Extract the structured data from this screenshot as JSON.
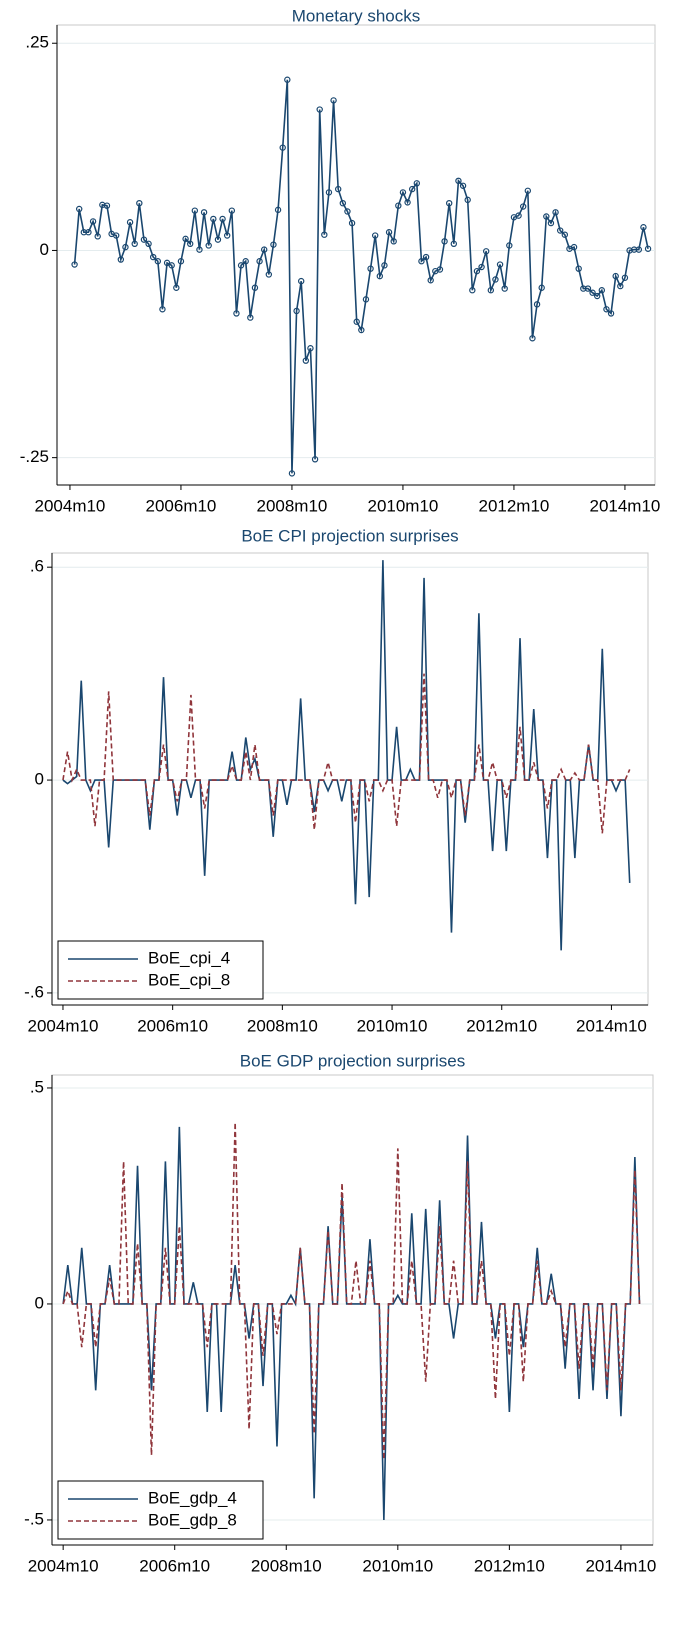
{
  "chart_data": [
    {
      "type": "line",
      "title": "Monetary shocks",
      "marker": "circle",
      "grid": true,
      "x": [
        538,
        539,
        540,
        541,
        542,
        543,
        544,
        545,
        546,
        547,
        548,
        549,
        550,
        551,
        552,
        553,
        554,
        555,
        556,
        557,
        558,
        559,
        560,
        561,
        562,
        563,
        564,
        565,
        566,
        567,
        568,
        569,
        570,
        571,
        572,
        573,
        574,
        575,
        576,
        577,
        578,
        579,
        580,
        581,
        582,
        583,
        584,
        585,
        586,
        587,
        588,
        589,
        590,
        591,
        592,
        593,
        594,
        595,
        596,
        597,
        598,
        599,
        600,
        601,
        602,
        603,
        604,
        605,
        606,
        607,
        608,
        609,
        610,
        611,
        612,
        613,
        614,
        615,
        616,
        617,
        618,
        619,
        620,
        621,
        622,
        623,
        624,
        625,
        626,
        627,
        628,
        629,
        630,
        631,
        632,
        633,
        634,
        635,
        636,
        637,
        638,
        639,
        640,
        641,
        642,
        643,
        644,
        645,
        646,
        647,
        648,
        649,
        650,
        651,
        652,
        653,
        654,
        655,
        656,
        657,
        658,
        659,
        660,
        661,
        662
      ],
      "series": [
        {
          "color": "#1a476f",
          "values": [
            -0.017,
            0.05,
            0.022,
            0.022,
            0.035,
            0.017,
            0.055,
            0.054,
            0.02,
            0.018,
            -0.011,
            0.004,
            0.034,
            0.008,
            0.057,
            0.013,
            0.008,
            -0.008,
            -0.013,
            -0.071,
            -0.015,
            -0.018,
            -0.045,
            -0.013,
            0.014,
            0.008,
            0.048,
            0.001,
            0.046,
            0.006,
            0.038,
            0.013,
            0.038,
            0.018,
            0.048,
            -0.076,
            -0.018,
            -0.013,
            -0.081,
            -0.045,
            -0.013,
            0.001,
            -0.029,
            0.007,
            0.049,
            0.124,
            0.206,
            -0.269,
            -0.073,
            -0.037,
            -0.133,
            -0.118,
            -0.252,
            0.17,
            0.019,
            0.07,
            0.181,
            0.074,
            0.057,
            0.047,
            0.033,
            -0.086,
            -0.096,
            -0.059,
            -0.022,
            0.018,
            -0.031,
            -0.018,
            0.022,
            0.011,
            0.054,
            0.07,
            0.058,
            0.074,
            0.081,
            -0.013,
            -0.008,
            -0.036,
            -0.025,
            -0.023,
            0.011,
            0.057,
            0.008,
            0.084,
            0.078,
            0.061,
            -0.048,
            -0.025,
            -0.02,
            -0.001,
            -0.048,
            -0.035,
            -0.017,
            -0.046,
            0.006,
            0.04,
            0.042,
            0.053,
            0.072,
            -0.106,
            -0.065,
            -0.045,
            0.041,
            0.033,
            0.046,
            0.024,
            0.019,
            0.002,
            0.004,
            -0.022,
            -0.046,
            -0.046,
            -0.051,
            -0.055,
            -0.048,
            -0.071,
            -0.076,
            -0.031,
            -0.043,
            -0.033,
            0.0,
            0.001,
            0.001,
            0.028,
            0.002
          ]
        }
      ],
      "xlim": [
        534.2,
        663.5
      ],
      "xticks": [
        {
          "value": 537,
          "label": "2004m10"
        },
        {
          "value": 561,
          "label": "2006m10"
        },
        {
          "value": 585,
          "label": "2008m10"
        },
        {
          "value": 609,
          "label": "2010m10"
        },
        {
          "value": 633,
          "label": "2012m10"
        },
        {
          "value": 657,
          "label": "2014m10"
        }
      ],
      "ylim": [
        -0.283,
        0.272
      ],
      "yticks": [
        {
          "value": 0.25,
          "label": ".25"
        },
        0,
        {
          "value": -0.25,
          "label": "-.25"
        }
      ]
    },
    {
      "type": "line",
      "title": "BoE CPI projection surprises",
      "grid": true,
      "legend": "lower left",
      "x": [
        537,
        538,
        539,
        540,
        541,
        542,
        543,
        544,
        545,
        546,
        547,
        548,
        549,
        550,
        551,
        552,
        553,
        554,
        555,
        556,
        557,
        558,
        559,
        560,
        561,
        562,
        563,
        564,
        565,
        566,
        567,
        568,
        569,
        570,
        571,
        572,
        573,
        574,
        575,
        576,
        577,
        578,
        579,
        580,
        581,
        582,
        583,
        584,
        585,
        586,
        587,
        588,
        589,
        590,
        591,
        592,
        593,
        594,
        595,
        596,
        597,
        598,
        599,
        600,
        601,
        602,
        603,
        604,
        605,
        606,
        607,
        608,
        609,
        610,
        611,
        612,
        613,
        614,
        615,
        616,
        617,
        618,
        619,
        620,
        621,
        622,
        623,
        624,
        625,
        626,
        627,
        628,
        629,
        630,
        631,
        632,
        633,
        634,
        635,
        636,
        637,
        638,
        639,
        640,
        641,
        642,
        643,
        644,
        645,
        646,
        647,
        648,
        649,
        650,
        651,
        652,
        653,
        654,
        655,
        656,
        657,
        658,
        659,
        660,
        661
      ],
      "series": [
        {
          "name": "BoE_cpi_4",
          "color": "#1a476f",
          "dash": false,
          "values": [
            0,
            -0.01,
            0,
            0.01,
            0.28,
            0,
            -0.03,
            0,
            0,
            0,
            -0.19,
            0,
            0,
            0,
            0,
            0,
            0,
            0,
            0,
            -0.14,
            0,
            0,
            0.29,
            0,
            0,
            -0.1,
            0,
            0,
            -0.05,
            0,
            0,
            -0.27,
            0,
            0,
            0,
            0,
            0,
            0.08,
            0,
            0,
            0.12,
            0.03,
            0.06,
            0,
            0,
            0,
            -0.16,
            0,
            0,
            -0.07,
            0,
            0,
            0.23,
            0,
            0,
            -0.09,
            0,
            0,
            -0.03,
            0,
            0,
            -0.06,
            0,
            0,
            -0.35,
            0,
            0,
            -0.33,
            0,
            0,
            0.62,
            0,
            0,
            0.15,
            0,
            0,
            0.03,
            0,
            0,
            0.57,
            0,
            0,
            0,
            0,
            0,
            -0.43,
            0,
            0,
            -0.12,
            0,
            0,
            0.47,
            0,
            0,
            -0.2,
            0,
            0,
            -0.2,
            0,
            0,
            0.4,
            0,
            0,
            0.2,
            0,
            0,
            -0.22,
            0,
            0,
            -0.48,
            0,
            0,
            -0.22,
            0,
            0,
            0.1,
            0,
            0,
            0.37,
            0,
            0,
            -0.03,
            0,
            0,
            -0.29
          ]
        },
        {
          "name": "BoE_cpi_8",
          "color": "#90353b",
          "dash": true,
          "values": [
            0,
            0.08,
            0,
            0.03,
            0,
            0,
            0,
            -0.13,
            0,
            0,
            0.25,
            0,
            0,
            0,
            0,
            0,
            0,
            0,
            0,
            -0.1,
            0,
            0,
            0.1,
            0,
            0,
            -0.06,
            0,
            0,
            0.24,
            0,
            0,
            -0.08,
            0,
            0,
            0,
            0,
            0,
            0.04,
            0,
            0,
            0.08,
            0,
            0.1,
            0,
            0,
            0,
            -0.1,
            0,
            0,
            0,
            0,
            0,
            0,
            0,
            0,
            -0.14,
            0,
            0,
            0.05,
            0,
            0,
            0,
            0,
            0,
            -0.12,
            0,
            0,
            -0.06,
            0,
            0,
            -0.03,
            0,
            0,
            -0.13,
            0,
            0,
            0,
            0,
            0,
            0.3,
            0,
            0,
            -0.05,
            0,
            0,
            -0.05,
            0,
            0,
            -0.1,
            0,
            0,
            0.1,
            0,
            0,
            0.05,
            0,
            0,
            -0.05,
            0,
            0,
            0.15,
            0,
            0,
            0.05,
            0,
            0,
            -0.08,
            0,
            0,
            0.03,
            0,
            0,
            0.02,
            0,
            0,
            0.1,
            0,
            0,
            -0.15,
            0,
            0,
            0,
            0,
            0,
            0.03
          ]
        }
      ],
      "xlim": [
        534.6,
        665
      ],
      "xticks": [
        {
          "value": 537,
          "label": "2004m10"
        },
        {
          "value": 561,
          "label": "2006m10"
        },
        {
          "value": 585,
          "label": "2008m10"
        },
        {
          "value": 609,
          "label": "2010m10"
        },
        {
          "value": 633,
          "label": "2012m10"
        },
        {
          "value": 657,
          "label": "2014m10"
        }
      ],
      "ylim": [
        -0.634,
        0.64
      ],
      "yticks": [
        {
          "value": 0.6,
          "label": ".6"
        },
        0,
        {
          "value": -0.6,
          "label": "-.6"
        }
      ]
    },
    {
      "type": "line",
      "title": "BoE GDP projection surprises",
      "grid": true,
      "legend": "lower left",
      "x": [
        537,
        538,
        539,
        540,
        541,
        542,
        543,
        544,
        545,
        546,
        547,
        548,
        549,
        550,
        551,
        552,
        553,
        554,
        555,
        556,
        557,
        558,
        559,
        560,
        561,
        562,
        563,
        564,
        565,
        566,
        567,
        568,
        569,
        570,
        571,
        572,
        573,
        574,
        575,
        576,
        577,
        578,
        579,
        580,
        581,
        582,
        583,
        584,
        585,
        586,
        587,
        588,
        589,
        590,
        591,
        592,
        593,
        594,
        595,
        596,
        597,
        598,
        599,
        600,
        601,
        602,
        603,
        604,
        605,
        606,
        607,
        608,
        609,
        610,
        611,
        612,
        613,
        614,
        615,
        616,
        617,
        618,
        619,
        620,
        621,
        622,
        623,
        624,
        625,
        626,
        627,
        628,
        629,
        630,
        631,
        632,
        633,
        634,
        635,
        636,
        637,
        638,
        639,
        640,
        641,
        642,
        643,
        644,
        645,
        646,
        647,
        648,
        649,
        650,
        651,
        652,
        653,
        654,
        655,
        656,
        657,
        658,
        659,
        660,
        661
      ],
      "series": [
        {
          "name": "BoE_gdp_4",
          "color": "#1a476f",
          "dash": false,
          "values": [
            0,
            0.09,
            0,
            0,
            0.13,
            0,
            0,
            -0.2,
            0,
            0,
            0.09,
            0,
            0,
            0,
            0,
            0,
            0.32,
            0,
            0,
            -0.2,
            0,
            0,
            0.33,
            0,
            0,
            0.41,
            0,
            0,
            0.05,
            0,
            0,
            -0.25,
            0,
            0,
            -0.25,
            0,
            0,
            0.09,
            0,
            0,
            -0.08,
            0,
            0,
            -0.19,
            0,
            0,
            -0.33,
            0,
            0,
            0.02,
            0,
            0.13,
            0,
            0,
            -0.45,
            0,
            0,
            0.18,
            0,
            0,
            0.25,
            0,
            0,
            0,
            0,
            0,
            0.15,
            0,
            0,
            -0.5,
            0,
            0,
            0.02,
            0,
            0,
            0.21,
            0,
            0,
            0.22,
            0,
            0,
            0.24,
            0,
            0,
            -0.08,
            0,
            0,
            0.39,
            0,
            0,
            0.19,
            0,
            0,
            -0.08,
            0,
            0,
            -0.25,
            0,
            0,
            -0.1,
            0,
            0,
            0.13,
            0,
            0,
            0.07,
            0,
            0,
            -0.15,
            0,
            0,
            -0.22,
            0,
            0,
            -0.2,
            0,
            0,
            -0.22,
            0,
            0,
            -0.26,
            0,
            0,
            0.34,
            0
          ]
        },
        {
          "name": "BoE_gdp_8",
          "color": "#90353b",
          "dash": true,
          "values": [
            0,
            0.03,
            0,
            0,
            -0.1,
            0,
            0,
            -0.1,
            0,
            0,
            0.06,
            0,
            0,
            0.33,
            0,
            0,
            0.14,
            0,
            0,
            -0.35,
            0,
            0,
            0.13,
            0,
            0,
            0.18,
            0,
            0,
            0,
            0,
            0,
            -0.1,
            0,
            0,
            0,
            0,
            0,
            0.42,
            0,
            0,
            -0.29,
            0,
            0,
            -0.12,
            0,
            0,
            -0.07,
            0,
            0,
            0,
            0,
            0.13,
            0,
            0,
            -0.3,
            0,
            0,
            0.17,
            0,
            0,
            0.28,
            0,
            0,
            0.1,
            0,
            0,
            0.1,
            0,
            0,
            -0.36,
            0,
            0,
            0.36,
            0,
            0,
            0.1,
            0,
            0,
            -0.18,
            0,
            0,
            0.18,
            0,
            0,
            0.1,
            0,
            0,
            0.33,
            0,
            0,
            0.1,
            0,
            0,
            -0.22,
            0,
            0,
            -0.12,
            0,
            0,
            -0.18,
            0,
            0,
            0.1,
            0,
            0,
            0.03,
            0,
            0,
            -0.1,
            0,
            0,
            -0.15,
            0,
            0,
            -0.15,
            0,
            0,
            -0.2,
            0,
            0,
            -0.2,
            0,
            0,
            0.31,
            0
          ]
        }
      ],
      "xlim": [
        534.6,
        663.9
      ],
      "xticks": [
        {
          "value": 537,
          "label": "2004m10"
        },
        {
          "value": 561,
          "label": "2006m10"
        },
        {
          "value": 585,
          "label": "2008m10"
        },
        {
          "value": 609,
          "label": "2010m10"
        },
        {
          "value": 633,
          "label": "2012m10"
        },
        {
          "value": 657,
          "label": "2014m10"
        }
      ],
      "ylim": [
        -0.558,
        0.53
      ],
      "yticks": [
        {
          "value": 0.5,
          "label": ".5"
        },
        0,
        {
          "value": -0.5,
          "label": "-.5"
        }
      ]
    }
  ]
}
